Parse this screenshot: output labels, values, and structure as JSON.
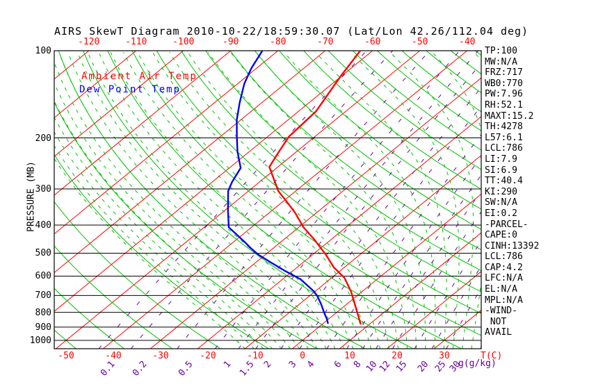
{
  "header": {
    "title": "AIRS SkewT Diagram 2010-10-22/18:59:30.07 (Lat/Lon 42.26/112.04 deg)"
  },
  "stats": {
    "lines": [
      "TP:100",
      "MW:N/A",
      "FRZ:717",
      "WB0:770",
      "PW:7.96",
      "RH:52.1",
      "MAXT:15.2",
      "TH:4278",
      "L57:6.1",
      "LCL:786",
      "LI:7.9",
      "SI:6.9",
      "TT:40.4",
      "KI:290",
      "SW:N/A",
      "EI:0.2",
      "-PARCEL-",
      "CAPE:0",
      "CINH:13392",
      "LCL:786",
      "CAP:4.2",
      "LFC:N/A",
      "EL:N/A",
      "MPL:N/A",
      "-WIND-",
      " NOT",
      "AVAIL"
    ]
  },
  "colors": {
    "temp_labels": "#ff0000",
    "mixing_labels": "#660099",
    "pressure_labels": "#000000",
    "isotherm": "#ff0000",
    "dry_adiabat": "#00c000",
    "moist_adiabat": "#00c000",
    "mixing_ratio": "#660099",
    "ambient_trace": "#ff0000",
    "dewpoint_trace": "#0000ee",
    "grid": "#000000"
  },
  "chart_data": {
    "type": "skewt_sounding",
    "title": "AIRS SkewT Diagram 2010-10-22/18:59:30.07 (Lat/Lon 42.26/112.04 deg)",
    "pressure_axis": {
      "label": "PRESSURE (MB)",
      "scale": "log",
      "ticks": [
        100,
        200,
        300,
        400,
        500,
        600,
        700,
        800,
        900,
        1000
      ],
      "range": [
        100,
        1070
      ]
    },
    "temp_axis": {
      "label": "T(C)",
      "skewed": true,
      "bottom_ticks": [
        -50,
        -40,
        -30,
        -20,
        -10,
        0,
        10,
        20,
        30
      ],
      "top_ticks": [
        -120,
        -110,
        -100,
        -90,
        -80,
        -70,
        -60,
        -50,
        -40
      ]
    },
    "mixing_axis": {
      "label": "g(g/kg)",
      "ticks": [
        0.1,
        0.2,
        0.5,
        1,
        1.5,
        2,
        3,
        4,
        6,
        8,
        10,
        12,
        15,
        20,
        25,
        30
      ]
    },
    "background_lines": {
      "isotherms_c": {
        "from": -130,
        "to": 40,
        "step": 10,
        "style": "solid"
      },
      "dry_adiabats_theta_c": {
        "from": -50,
        "to": 180,
        "step": 10,
        "style": "solid"
      },
      "moist_adiabats_thetaw_c": {
        "from": -14,
        "to": 38,
        "step": 2,
        "style": "dashed"
      },
      "mixing_ratio_gkg": {
        "values": [
          0.1,
          0.2,
          0.5,
          1,
          1.5,
          2,
          3,
          4,
          6,
          8,
          10,
          12,
          15,
          20,
          25,
          30
        ],
        "style": "dashed"
      }
    },
    "series": [
      {
        "name": "Ambient Air Temp",
        "color": "#ff0000",
        "points_p_t": [
          [
            100,
            -62.6
          ],
          [
            123,
            -60.1
          ],
          [
            162,
            -56.3
          ],
          [
            198,
            -55.5
          ],
          [
            225,
            -53.6
          ],
          [
            252,
            -51.8
          ],
          [
            305,
            -43.7
          ],
          [
            331,
            -39.3
          ],
          [
            362,
            -34.6
          ],
          [
            407,
            -29.0
          ],
          [
            449,
            -23.5
          ],
          [
            504,
            -17.4
          ],
          [
            560,
            -12.2
          ],
          [
            608,
            -7.3
          ],
          [
            679,
            -2.3
          ],
          [
            759,
            2.2
          ],
          [
            824,
            5.5
          ],
          [
            881,
            8.2
          ]
        ]
      },
      {
        "name": "Dew Point Temp",
        "color": "#0000ee",
        "points_p_t": [
          [
            100,
            -83.3
          ],
          [
            115,
            -81.1
          ],
          [
            130,
            -78.6
          ],
          [
            151,
            -74.7
          ],
          [
            173,
            -70.9
          ],
          [
            198,
            -66.5
          ],
          [
            223,
            -62.5
          ],
          [
            254,
            -57.6
          ],
          [
            284,
            -55.8
          ],
          [
            305,
            -54.3
          ],
          [
            354,
            -49.5
          ],
          [
            407,
            -44.8
          ],
          [
            430,
            -41.4
          ],
          [
            457,
            -37.7
          ],
          [
            480,
            -34.8
          ],
          [
            505,
            -31.6
          ],
          [
            539,
            -26.7
          ],
          [
            576,
            -21.6
          ],
          [
            615,
            -16.2
          ],
          [
            654,
            -12.4
          ],
          [
            679,
            -10.1
          ],
          [
            706,
            -8.1
          ],
          [
            750,
            -5.4
          ],
          [
            802,
            -2.6
          ],
          [
            847,
            -0.2
          ],
          [
            876,
            1.1
          ]
        ]
      }
    ]
  }
}
